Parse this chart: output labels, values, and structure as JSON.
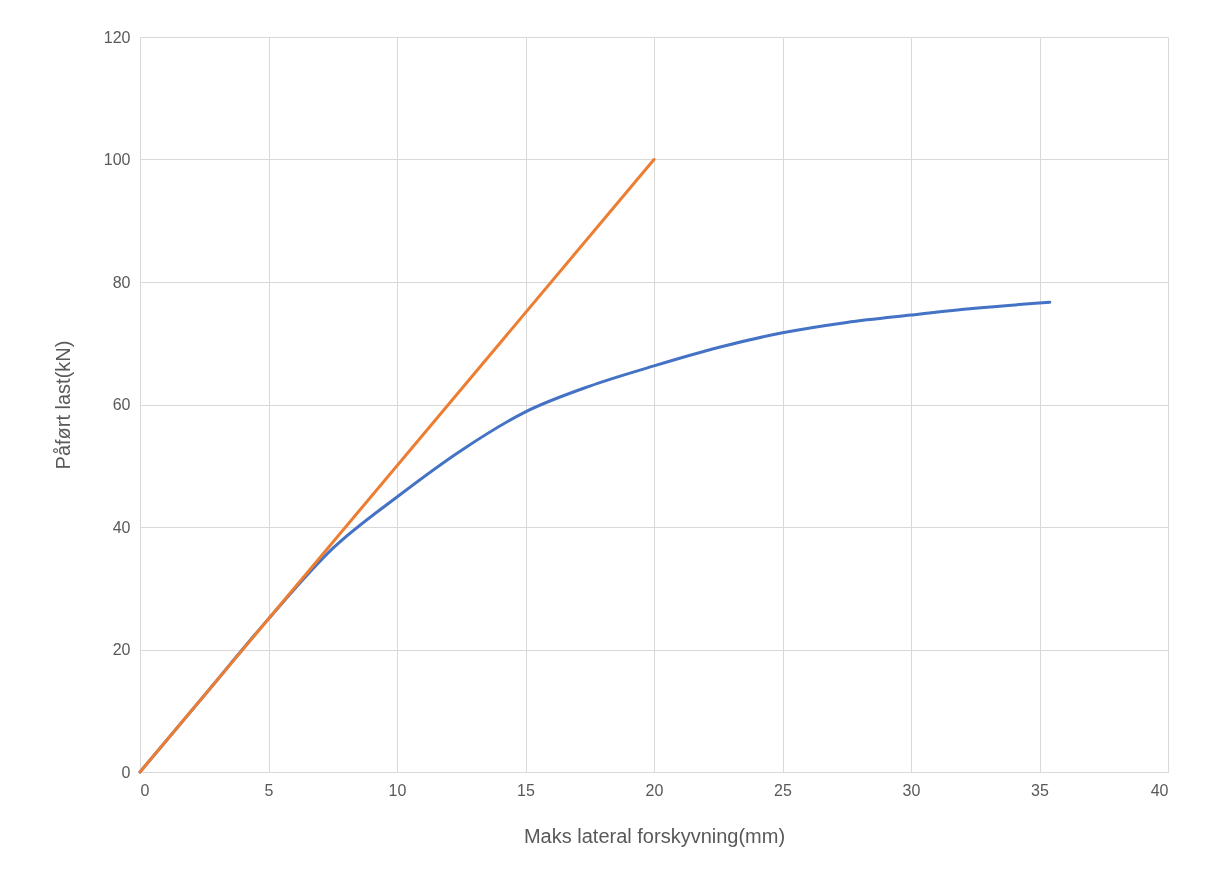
{
  "chart_data": {
    "type": "line",
    "xlabel": "Maks lateral forskyvning(mm)",
    "ylabel": "Påført last(kN)",
    "xlim": [
      0,
      40
    ],
    "xticks": [
      0,
      5,
      10,
      15,
      20,
      25,
      30,
      35,
      40
    ],
    "ylim": [
      0,
      120
    ],
    "yticks": [
      0,
      20,
      40,
      60,
      80,
      100,
      120
    ],
    "grid": true,
    "legend": false,
    "marker": "none",
    "line_style": "solid",
    "series": [
      {
        "color": "#4472c4",
        "x": [
          0,
          2.5,
          5,
          7.5,
          10,
          12.5,
          15,
          17.5,
          20,
          22.5,
          25,
          27.5,
          30,
          32.5,
          35.4
        ],
        "values": [
          0,
          12.5,
          25,
          36.5,
          44.9,
          52.5,
          58.8,
          63,
          66.3,
          69.3,
          71.7,
          73.4,
          74.6,
          75.7,
          76.7
        ]
      },
      {
        "color": "#ed7d31",
        "x": [
          0,
          20
        ],
        "values": [
          0,
          100
        ]
      }
    ]
  }
}
